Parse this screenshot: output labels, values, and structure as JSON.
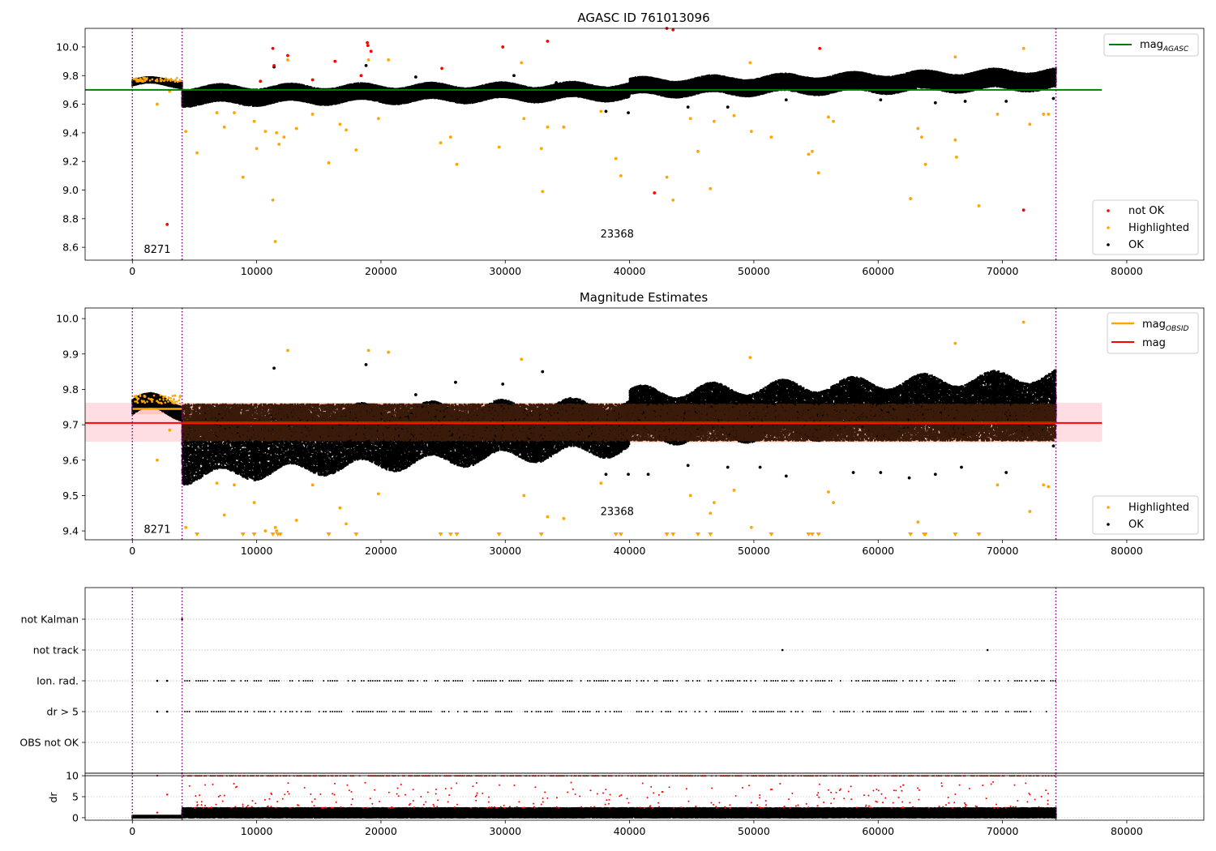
{
  "figure": {
    "title_top": "AGASC ID 761013096",
    "title_middle": "Magnitude Estimates"
  },
  "colors": {
    "ok": "#000000",
    "highlighted": "#ffa500",
    "not_ok": "#ff0000",
    "mag_agasc": "#008000",
    "mag_obsid": "#ffa500",
    "mag": "#ff0000",
    "vline": "#800080",
    "band_pink": "#ffb6c1",
    "band_orange": "#ffa070",
    "dense_brown": "#3a1a08"
  },
  "chart_data": [
    {
      "type": "scatter",
      "name": "top",
      "title": "AGASC ID 761013096",
      "xlim": [
        -3800,
        86200
      ],
      "ylim": [
        8.51,
        10.13
      ],
      "xticks": [
        0,
        10000,
        20000,
        30000,
        40000,
        50000,
        60000,
        70000,
        80000
      ],
      "yticks": [
        8.6,
        8.8,
        9.0,
        9.2,
        9.4,
        9.6,
        9.8,
        10.0
      ],
      "ytick_labels": [
        "8.6",
        "8.8",
        "9.0",
        "9.2",
        "9.4",
        "9.6",
        "9.8",
        "10.0"
      ],
      "hline": {
        "label": "mag",
        "sub": "AGASC",
        "y": 9.7,
        "x0": -3800,
        "x1": 78000
      },
      "vlines": [
        0,
        4000,
        74300
      ],
      "annotations": [
        {
          "text": "8271",
          "x": 2000,
          "y": 8.56
        },
        {
          "text": "23368",
          "x": 39000,
          "y": 8.67
        }
      ],
      "legend_position": "lower-right",
      "legend": [
        "not OK",
        "Highlighted",
        "OK"
      ],
      "hline_legend_position": "upper-right",
      "ok_segments": [
        {
          "x0": 0,
          "x1": 4000,
          "ylo": 9.73,
          "yhi": 9.77
        },
        {
          "x0": 4000,
          "x1": 40000,
          "ylo_start": 9.6,
          "yhi_start": 9.72,
          "ylo_end": 9.64,
          "yhi_end": 9.74
        },
        {
          "x0": 40000,
          "x1": 74300,
          "ylo_start": 9.66,
          "yhi_start": 9.77,
          "ylo_end": 9.71,
          "yhi_end": 9.84
        }
      ],
      "highlighted_points": [
        [
          1000,
          9.78
        ],
        [
          2000,
          9.6
        ],
        [
          3000,
          9.69
        ],
        [
          4300,
          9.41
        ],
        [
          5200,
          9.26
        ],
        [
          6800,
          9.54
        ],
        [
          7400,
          9.44
        ],
        [
          8200,
          9.54
        ],
        [
          8900,
          9.09
        ],
        [
          9800,
          9.48
        ],
        [
          10000,
          9.29
        ],
        [
          10700,
          9.41
        ],
        [
          11300,
          8.93
        ],
        [
          11500,
          8.64
        ],
        [
          11600,
          9.4
        ],
        [
          11800,
          9.32
        ],
        [
          12200,
          9.37
        ],
        [
          12500,
          9.91
        ],
        [
          13200,
          9.43
        ],
        [
          14500,
          9.53
        ],
        [
          15800,
          9.19
        ],
        [
          16700,
          9.46
        ],
        [
          17200,
          9.42
        ],
        [
          18000,
          9.28
        ],
        [
          19000,
          9.91
        ],
        [
          19800,
          9.5
        ],
        [
          20600,
          9.91
        ],
        [
          24800,
          9.33
        ],
        [
          25600,
          9.37
        ],
        [
          26100,
          9.18
        ],
        [
          29500,
          9.3
        ],
        [
          31300,
          9.89
        ],
        [
          31500,
          9.5
        ],
        [
          32900,
          9.29
        ],
        [
          33000,
          8.99
        ],
        [
          33400,
          9.44
        ],
        [
          34700,
          9.44
        ],
        [
          37700,
          9.55
        ],
        [
          38900,
          9.22
        ],
        [
          39300,
          9.1
        ],
        [
          43000,
          9.09
        ],
        [
          43500,
          8.93
        ],
        [
          44900,
          9.5
        ],
        [
          45500,
          9.27
        ],
        [
          46500,
          9.01
        ],
        [
          46800,
          9.48
        ],
        [
          48400,
          9.52
        ],
        [
          49700,
          9.89
        ],
        [
          49800,
          9.41
        ],
        [
          51400,
          9.37
        ],
        [
          54400,
          9.25
        ],
        [
          54700,
          9.27
        ],
        [
          55200,
          9.12
        ],
        [
          56000,
          9.51
        ],
        [
          56400,
          9.48
        ],
        [
          62600,
          8.94
        ],
        [
          63200,
          9.43
        ],
        [
          63500,
          9.37
        ],
        [
          63800,
          9.18
        ],
        [
          66200,
          9.93
        ],
        [
          66200,
          9.35
        ],
        [
          66300,
          9.23
        ],
        [
          68100,
          8.89
        ],
        [
          69600,
          9.53
        ],
        [
          71700,
          9.99
        ],
        [
          72200,
          9.46
        ],
        [
          73300,
          9.53
        ],
        [
          73700,
          9.53
        ]
      ],
      "not_ok_points": [
        [
          2800,
          8.76
        ],
        [
          10300,
          9.76
        ],
        [
          11300,
          9.99
        ],
        [
          11400,
          9.87
        ],
        [
          12500,
          9.94
        ],
        [
          14500,
          9.77
        ],
        [
          16300,
          9.9
        ],
        [
          18400,
          9.8
        ],
        [
          18900,
          10.03
        ],
        [
          18950,
          10.01
        ],
        [
          19200,
          9.97
        ],
        [
          24900,
          9.85
        ],
        [
          29800,
          10.0
        ],
        [
          33400,
          10.04
        ],
        [
          42000,
          8.98
        ],
        [
          43000,
          10.13
        ],
        [
          43500,
          10.12
        ],
        [
          55300,
          9.99
        ],
        [
          71700,
          8.86
        ]
      ],
      "ok_outliers": [
        [
          11400,
          9.86
        ],
        [
          18800,
          9.87
        ],
        [
          22800,
          9.79
        ],
        [
          30700,
          9.8
        ],
        [
          34100,
          9.75
        ],
        [
          38100,
          9.55
        ],
        [
          39900,
          9.54
        ],
        [
          44700,
          9.58
        ],
        [
          47900,
          9.58
        ],
        [
          52600,
          9.63
        ],
        [
          60200,
          9.63
        ],
        [
          64600,
          9.61
        ],
        [
          67000,
          9.62
        ],
        [
          70300,
          9.62
        ],
        [
          74100,
          9.64
        ]
      ]
    },
    {
      "type": "scatter",
      "name": "middle",
      "title": "Magnitude Estimates",
      "xlim": [
        -3800,
        86200
      ],
      "ylim": [
        9.375,
        10.03
      ],
      "xticks": [
        0,
        10000,
        20000,
        30000,
        40000,
        50000,
        60000,
        70000,
        80000
      ],
      "yticks": [
        9.4,
        9.5,
        9.6,
        9.7,
        9.8,
        9.9,
        10.0
      ],
      "ytick_labels": [
        "9.4",
        "9.5",
        "9.6",
        "9.7",
        "9.8",
        "9.9",
        "10.0"
      ],
      "mag": {
        "label": "mag",
        "y": 9.705,
        "x0": -3800,
        "x1": 78000,
        "band": [
          9.652,
          9.762
        ]
      },
      "mag_obsid": [
        {
          "label": "mag",
          "sub": "OBSID",
          "y": 9.745,
          "x0": 0,
          "x1": 4000,
          "band": [
            9.73,
            9.76
          ]
        },
        {
          "y": 9.705,
          "x0": 4000,
          "x1": 74300,
          "band": [
            9.65,
            9.762
          ]
        }
      ],
      "vlines": [
        0,
        4000,
        74300
      ],
      "annotations": [
        {
          "text": "8271",
          "x": 2000,
          "y": 9.395
        },
        {
          "text": "23368",
          "x": 39000,
          "y": 9.445
        }
      ],
      "legend_position": "lower-right",
      "legend": [
        "Highlighted",
        "OK"
      ],
      "line_legend_position": "upper-right",
      "ok_segments": [
        {
          "x0": 0,
          "x1": 4000,
          "ylo": 9.73,
          "yhi": 9.77
        },
        {
          "x0": 4000,
          "x1": 40000,
          "ylo_start": 9.55,
          "yhi_start": 9.73,
          "ylo_end": 9.63,
          "yhi_end": 9.76
        },
        {
          "x0": 40000,
          "x1": 74300,
          "ylo_start": 9.66,
          "yhi_start": 9.79,
          "ylo_end": 9.69,
          "yhi_end": 9.84
        }
      ],
      "highlighted_points": [
        [
          1000,
          9.78
        ],
        [
          2000,
          9.6
        ],
        [
          3000,
          9.685
        ],
        [
          4300,
          9.41
        ],
        [
          6800,
          9.535
        ],
        [
          7400,
          9.445
        ],
        [
          8200,
          9.53
        ],
        [
          9800,
          9.48
        ],
        [
          10700,
          9.4
        ],
        [
          11500,
          9.41
        ],
        [
          11600,
          9.4
        ],
        [
          12500,
          9.91
        ],
        [
          13200,
          9.43
        ],
        [
          14500,
          9.53
        ],
        [
          16700,
          9.465
        ],
        [
          17200,
          9.42
        ],
        [
          19000,
          9.91
        ],
        [
          19800,
          9.505
        ],
        [
          20600,
          9.905
        ],
        [
          31300,
          9.885
        ],
        [
          31500,
          9.5
        ],
        [
          33400,
          9.44
        ],
        [
          34700,
          9.435
        ],
        [
          37700,
          9.535
        ],
        [
          44900,
          9.5
        ],
        [
          46500,
          9.45
        ],
        [
          46800,
          9.48
        ],
        [
          48400,
          9.515
        ],
        [
          49700,
          9.89
        ],
        [
          49800,
          9.41
        ],
        [
          56000,
          9.51
        ],
        [
          56400,
          9.48
        ],
        [
          63200,
          9.425
        ],
        [
          66200,
          9.93
        ],
        [
          69600,
          9.53
        ],
        [
          71700,
          9.99
        ],
        [
          72200,
          9.455
        ],
        [
          73300,
          9.53
        ],
        [
          73700,
          9.525
        ]
      ],
      "down_markers": [
        5200,
        8900,
        9800,
        11300,
        11700,
        11900,
        15800,
        18000,
        24800,
        25600,
        26100,
        29500,
        32900,
        38900,
        39300,
        43000,
        43500,
        45500,
        46500,
        51400,
        54400,
        54700,
        55200,
        62600,
        63700,
        63800,
        66200,
        68100
      ],
      "ok_outliers": [
        [
          11400,
          9.86
        ],
        [
          18800,
          9.87
        ],
        [
          22800,
          9.785
        ],
        [
          26000,
          9.82
        ],
        [
          29800,
          9.815
        ],
        [
          33000,
          9.85
        ],
        [
          38100,
          9.56
        ],
        [
          39900,
          9.56
        ],
        [
          41500,
          9.56
        ],
        [
          44700,
          9.585
        ],
        [
          47900,
          9.58
        ],
        [
          50500,
          9.58
        ],
        [
          52600,
          9.555
        ],
        [
          58000,
          9.565
        ],
        [
          60200,
          9.565
        ],
        [
          62500,
          9.55
        ],
        [
          64600,
          9.56
        ],
        [
          66700,
          9.58
        ],
        [
          70300,
          9.565
        ],
        [
          74100,
          9.64
        ]
      ]
    },
    {
      "type": "scatter",
      "name": "flags",
      "xlim": [
        -3800,
        86200
      ],
      "categories": [
        "OBS not OK",
        "dr > 5",
        "Ion. rad.",
        "not track",
        "not Kalman"
      ],
      "vlines": [
        0,
        4000,
        74300
      ],
      "flag_points": {
        "not Kalman": [
          4000
        ],
        "not track": [
          52300,
          68800
        ],
        "Ion. rad.": [
          2000,
          2800
        ],
        "dr > 5": [
          2000,
          2800
        ]
      },
      "flag_dense_ranges": {
        "Ion. rad.": [
          4000,
          74300
        ],
        "dr > 5": [
          4000,
          74300
        ]
      }
    },
    {
      "type": "scatter",
      "name": "dr",
      "ylabel": "dr",
      "xlim": [
        -3800,
        86200
      ],
      "ylim": [
        -0.6,
        10.6
      ],
      "xticks": [
        0,
        10000,
        20000,
        30000,
        40000,
        50000,
        60000,
        70000,
        80000
      ],
      "xtick_labels": [
        "0",
        "10000",
        "20000",
        "30000",
        "40000",
        "50000",
        "60000",
        "70000",
        "80000"
      ],
      "yticks": [
        0,
        5,
        10
      ],
      "ytick_labels": [
        "0",
        "5",
        "10"
      ],
      "vlines": [
        0,
        4000,
        74300
      ],
      "hline": {
        "y": 10
      },
      "ok_segments": [
        {
          "x0": 0,
          "x1": 4000,
          "ylo": 0.0,
          "yhi": 0.5
        },
        {
          "x0": 4000,
          "x1": 74300,
          "ylo": 0.0,
          "yhi": 2.3
        }
      ],
      "red_cap_y": 10,
      "red_scatter_range": [
        2.3,
        8.5
      ]
    }
  ]
}
